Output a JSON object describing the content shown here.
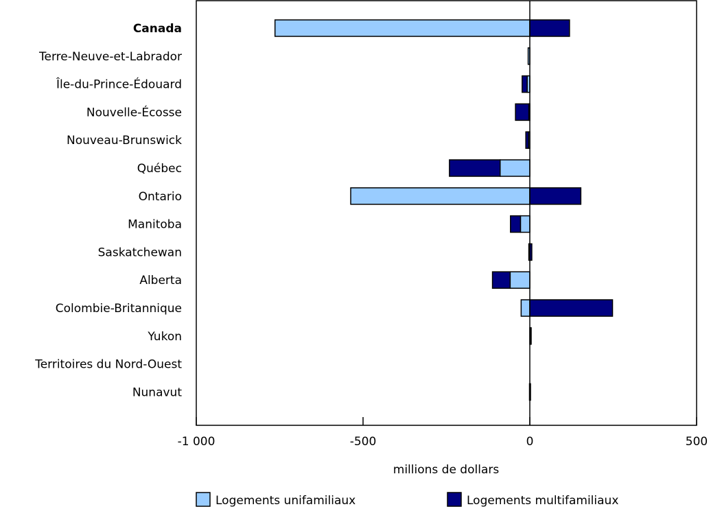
{
  "chart_data": {
    "type": "bar",
    "orientation": "horizontal",
    "stacked": true,
    "categories": [
      "Canada",
      "Terre-Neuve-et-Labrador",
      "Île-du-Prince-Édouard",
      "Nouvelle-Écosse",
      "Nouveau-Brunswick",
      "Québec",
      "Ontario",
      "Manitoba",
      "Saskatchewan",
      "Alberta",
      "Colombie-Britannique",
      "Yukon",
      "Territoires du Nord-Ouest",
      "Nunavut"
    ],
    "bold_categories": [
      "Canada"
    ],
    "series": [
      {
        "name": "Logements unifamiliaux",
        "color": "#99ccff",
        "values": [
          -764,
          -5,
          -8,
          -3,
          -4,
          -89,
          -537,
          -28,
          -3,
          -59,
          -26,
          1,
          0,
          -1
        ]
      },
      {
        "name": "Logements multifamiliaux",
        "color": "#000080",
        "values": [
          119,
          0,
          -15,
          -40,
          -8,
          -152,
          153,
          -30,
          6,
          -53,
          248,
          3,
          0,
          0
        ]
      }
    ],
    "xlabel": "millions de dollars",
    "xlim": [
      -1000,
      500
    ],
    "xticks": [
      -1000,
      -500,
      0,
      500
    ],
    "xtick_labels": [
      "-1 000",
      "-500",
      "0",
      "500"
    ],
    "grid": false,
    "legend_position": "bottom"
  }
}
